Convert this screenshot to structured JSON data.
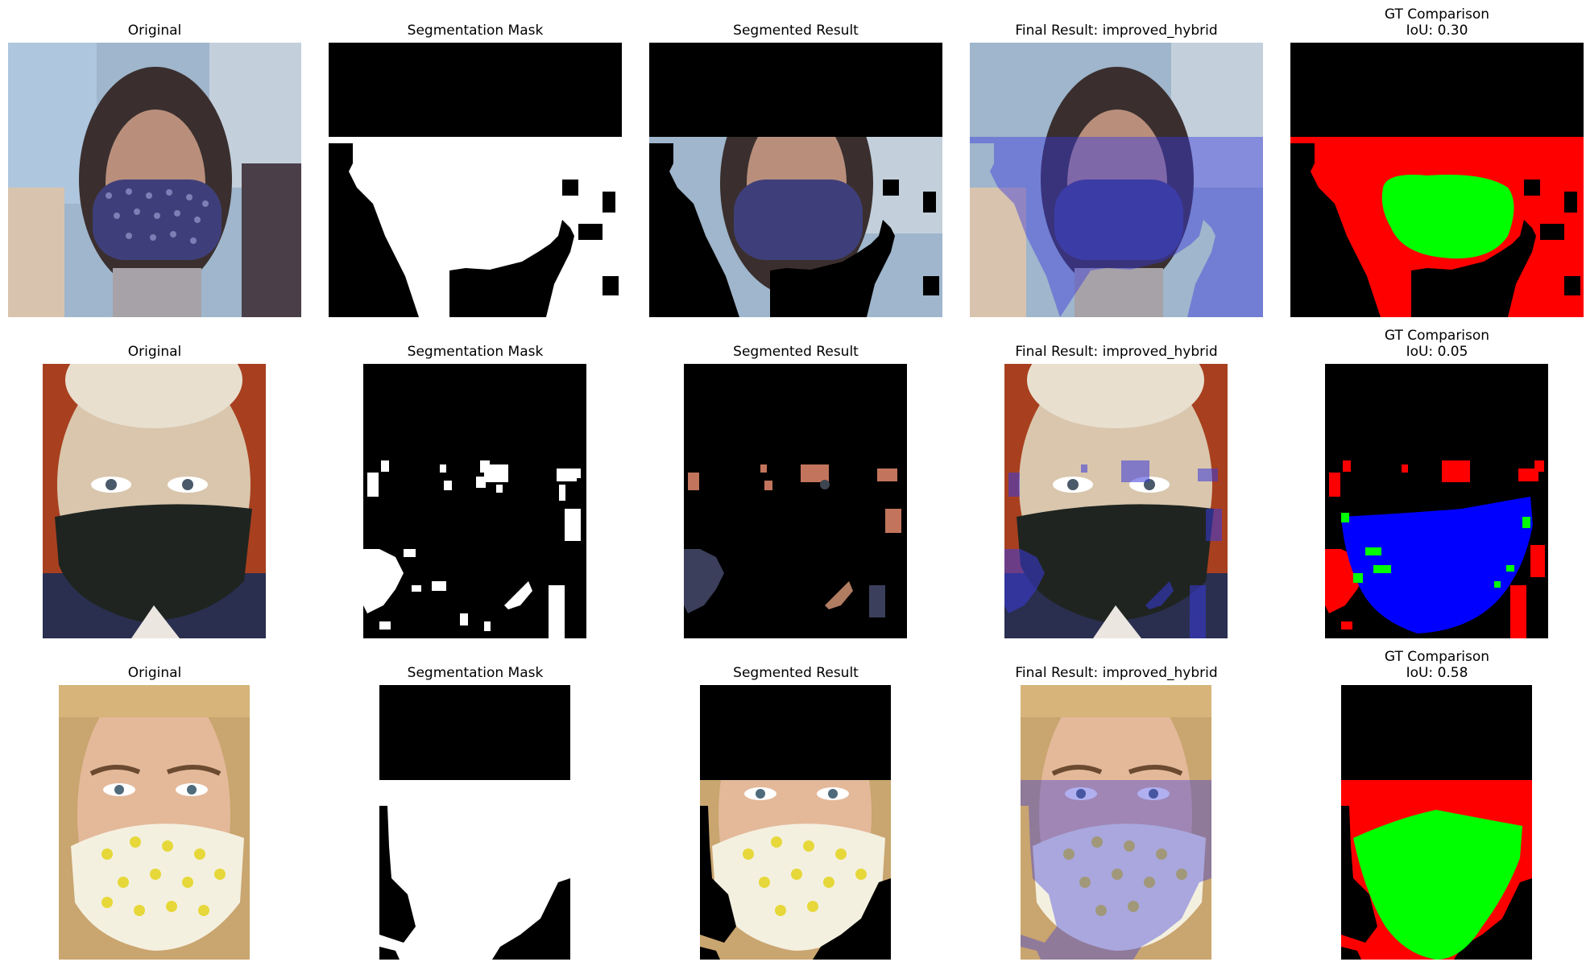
{
  "figure": {
    "rows": [
      {
        "panels": [
          {
            "title_line1": "Original",
            "title_line2": "",
            "kind": "photo-blue"
          },
          {
            "title_line1": "Segmentation Mask",
            "title_line2": "",
            "kind": "mask"
          },
          {
            "title_line1": "Segmented Result",
            "title_line2": "",
            "kind": "segmented"
          },
          {
            "title_line1": "Final Result: improved_hybrid",
            "title_line2": "",
            "kind": "overlay"
          },
          {
            "title_line1": "GT Comparison",
            "title_line2": "IoU: 0.30",
            "kind": "gt"
          }
        ]
      },
      {
        "panels": [
          {
            "title_line1": "Original",
            "title_line2": "",
            "kind": "photo-man"
          },
          {
            "title_line1": "Segmentation Mask",
            "title_line2": "",
            "kind": "mask"
          },
          {
            "title_line1": "Segmented Result",
            "title_line2": "",
            "kind": "segmented"
          },
          {
            "title_line1": "Final Result: improved_hybrid",
            "title_line2": "",
            "kind": "overlay"
          },
          {
            "title_line1": "GT Comparison",
            "title_line2": "IoU: 0.05",
            "kind": "gt"
          }
        ]
      },
      {
        "panels": [
          {
            "title_line1": "Original",
            "title_line2": "",
            "kind": "photo-woman"
          },
          {
            "title_line1": "Segmentation Mask",
            "title_line2": "",
            "kind": "mask"
          },
          {
            "title_line1": "Segmented Result",
            "title_line2": "",
            "kind": "segmented"
          },
          {
            "title_line1": "Final Result: improved_hybrid",
            "title_line2": "",
            "kind": "overlay"
          },
          {
            "title_line1": "GT Comparison",
            "title_line2": "IoU: 0.58",
            "kind": "gt"
          }
        ]
      }
    ],
    "colors": {
      "background": "#ffffff",
      "mask_fg": "#ffffff",
      "mask_bg": "#000000",
      "overlay_tint": "#3a3adc",
      "gt_true_positive": "#00ff00",
      "gt_false_positive": "#ff0000",
      "gt_false_negative": "#0000ff",
      "gt_background": "#000000"
    }
  }
}
